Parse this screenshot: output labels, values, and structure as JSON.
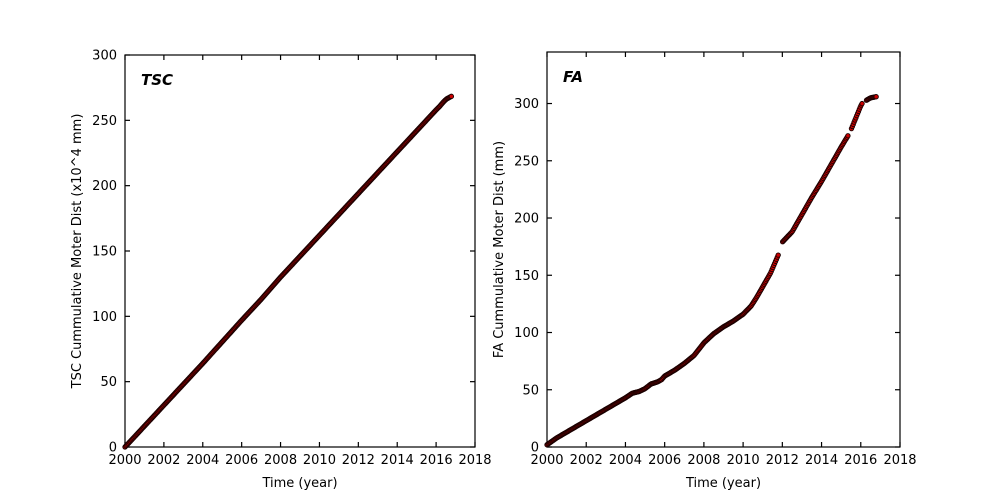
{
  "figure": {
    "background": "#ffffff",
    "axis_color": "#000000",
    "marker_fill": "#cc0000",
    "marker_edge": "#1a0000"
  },
  "chart_data": [
    {
      "type": "scatter",
      "id": "tsc",
      "title": "TSC",
      "xlabel": "Time (year)",
      "ylabel": "TSC Cummulative Moter Dist (x10^4 mm)",
      "xlim": [
        2000,
        2018
      ],
      "ylim": [
        0,
        300
      ],
      "xticks": [
        2000,
        2002,
        2004,
        2006,
        2008,
        2010,
        2012,
        2014,
        2016,
        2018
      ],
      "yticks": [
        0,
        50,
        100,
        150,
        200,
        250,
        300
      ],
      "grid": false,
      "legend": null,
      "marker_step": 0.045,
      "anchors": [
        [
          2000.0,
          0
        ],
        [
          2001,
          16
        ],
        [
          2002,
          32
        ],
        [
          2003,
          48
        ],
        [
          2004,
          64
        ],
        [
          2005,
          80.5
        ],
        [
          2006,
          97
        ],
        [
          2007,
          113
        ],
        [
          2008,
          130
        ],
        [
          2009,
          146
        ],
        [
          2010,
          162
        ],
        [
          2011,
          178
        ],
        [
          2012,
          194
        ],
        [
          2013,
          210
        ],
        [
          2014,
          226
        ],
        [
          2015,
          242
        ],
        [
          2016,
          258
        ],
        [
          2016.2,
          261
        ],
        [
          2016.4,
          264.5
        ],
        [
          2016.55,
          266.5
        ],
        [
          2016.8,
          268.5
        ]
      ],
      "gaps": []
    },
    {
      "type": "scatter",
      "id": "fa",
      "title": "FA",
      "xlabel": "Time (year)",
      "ylabel": "FA Cummulative Moter Dist (mm)",
      "xlim": [
        2000,
        2018
      ],
      "ylim": [
        0,
        345
      ],
      "xticks": [
        2000,
        2002,
        2004,
        2006,
        2008,
        2010,
        2012,
        2014,
        2016,
        2018
      ],
      "yticks": [
        0,
        50,
        100,
        150,
        200,
        250,
        300
      ],
      "grid": false,
      "legend": null,
      "marker_step": 0.045,
      "anchors": [
        [
          2000.0,
          2
        ],
        [
          2000.5,
          8
        ],
        [
          2001,
          13
        ],
        [
          2001.5,
          18
        ],
        [
          2002,
          23
        ],
        [
          2002.5,
          28
        ],
        [
          2003,
          33
        ],
        [
          2003.5,
          38
        ],
        [
          2004,
          43
        ],
        [
          2004.35,
          47
        ],
        [
          2004.7,
          48.5
        ],
        [
          2005,
          51
        ],
        [
          2005.3,
          55
        ],
        [
          2005.65,
          57
        ],
        [
          2005.85,
          59
        ],
        [
          2006,
          62
        ],
        [
          2006.5,
          67
        ],
        [
          2007,
          73
        ],
        [
          2007.5,
          80
        ],
        [
          2008,
          91
        ],
        [
          2008.5,
          99
        ],
        [
          2009,
          105
        ],
        [
          2009.5,
          110
        ],
        [
          2010,
          116
        ],
        [
          2010.4,
          123
        ],
        [
          2010.7,
          131
        ],
        [
          2011,
          140
        ],
        [
          2011.4,
          152
        ],
        [
          2011.8,
          168
        ],
        [
          2012,
          179
        ],
        [
          2012.5,
          188
        ],
        [
          2013,
          203
        ],
        [
          2013.5,
          218
        ],
        [
          2014,
          232
        ],
        [
          2014.5,
          247
        ],
        [
          2015,
          262
        ],
        [
          2015.35,
          272
        ],
        [
          2015.5,
          277
        ],
        [
          2016,
          298
        ],
        [
          2016.1,
          301
        ],
        [
          2016.3,
          303
        ],
        [
          2016.5,
          305
        ],
        [
          2016.8,
          306
        ]
      ],
      "gaps": [
        [
          2011.82,
          2011.98
        ],
        [
          2015.37,
          2015.49
        ],
        [
          2016.08,
          2016.27
        ]
      ]
    }
  ]
}
